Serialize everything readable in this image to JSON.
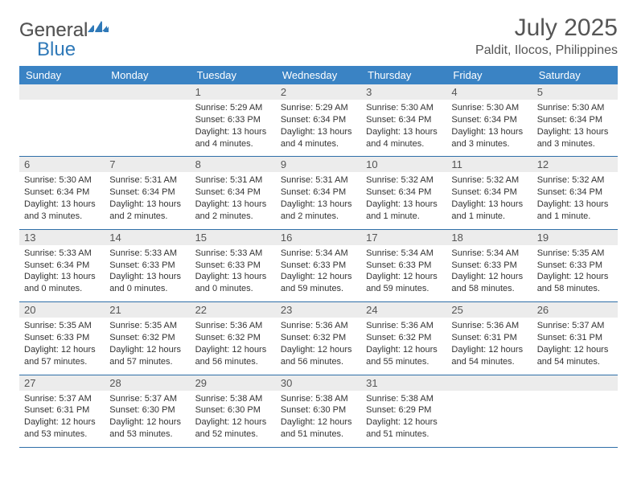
{
  "brand": {
    "name_part1": "General",
    "name_part2": "Blue"
  },
  "header": {
    "title": "July 2025",
    "location": "Paldit, Ilocos, Philippines"
  },
  "colors": {
    "header_bg": "#3a83c4",
    "header_text": "#ffffff",
    "daynum_bg": "#ececec",
    "border": "#2f6fa8",
    "text": "#333333",
    "title_text": "#555555",
    "logo_blue": "#2f79b8"
  },
  "calendar": {
    "day_names": [
      "Sunday",
      "Monday",
      "Tuesday",
      "Wednesday",
      "Thursday",
      "Friday",
      "Saturday"
    ],
    "weeks": [
      [
        null,
        null,
        {
          "n": "1",
          "sr": "5:29 AM",
          "ss": "6:33 PM",
          "dl": "13 hours and 4 minutes."
        },
        {
          "n": "2",
          "sr": "5:29 AM",
          "ss": "6:34 PM",
          "dl": "13 hours and 4 minutes."
        },
        {
          "n": "3",
          "sr": "5:30 AM",
          "ss": "6:34 PM",
          "dl": "13 hours and 4 minutes."
        },
        {
          "n": "4",
          "sr": "5:30 AM",
          "ss": "6:34 PM",
          "dl": "13 hours and 3 minutes."
        },
        {
          "n": "5",
          "sr": "5:30 AM",
          "ss": "6:34 PM",
          "dl": "13 hours and 3 minutes."
        }
      ],
      [
        {
          "n": "6",
          "sr": "5:30 AM",
          "ss": "6:34 PM",
          "dl": "13 hours and 3 minutes."
        },
        {
          "n": "7",
          "sr": "5:31 AM",
          "ss": "6:34 PM",
          "dl": "13 hours and 2 minutes."
        },
        {
          "n": "8",
          "sr": "5:31 AM",
          "ss": "6:34 PM",
          "dl": "13 hours and 2 minutes."
        },
        {
          "n": "9",
          "sr": "5:31 AM",
          "ss": "6:34 PM",
          "dl": "13 hours and 2 minutes."
        },
        {
          "n": "10",
          "sr": "5:32 AM",
          "ss": "6:34 PM",
          "dl": "13 hours and 1 minute."
        },
        {
          "n": "11",
          "sr": "5:32 AM",
          "ss": "6:34 PM",
          "dl": "13 hours and 1 minute."
        },
        {
          "n": "12",
          "sr": "5:32 AM",
          "ss": "6:34 PM",
          "dl": "13 hours and 1 minute."
        }
      ],
      [
        {
          "n": "13",
          "sr": "5:33 AM",
          "ss": "6:34 PM",
          "dl": "13 hours and 0 minutes."
        },
        {
          "n": "14",
          "sr": "5:33 AM",
          "ss": "6:33 PM",
          "dl": "13 hours and 0 minutes."
        },
        {
          "n": "15",
          "sr": "5:33 AM",
          "ss": "6:33 PM",
          "dl": "13 hours and 0 minutes."
        },
        {
          "n": "16",
          "sr": "5:34 AM",
          "ss": "6:33 PM",
          "dl": "12 hours and 59 minutes."
        },
        {
          "n": "17",
          "sr": "5:34 AM",
          "ss": "6:33 PM",
          "dl": "12 hours and 59 minutes."
        },
        {
          "n": "18",
          "sr": "5:34 AM",
          "ss": "6:33 PM",
          "dl": "12 hours and 58 minutes."
        },
        {
          "n": "19",
          "sr": "5:35 AM",
          "ss": "6:33 PM",
          "dl": "12 hours and 58 minutes."
        }
      ],
      [
        {
          "n": "20",
          "sr": "5:35 AM",
          "ss": "6:33 PM",
          "dl": "12 hours and 57 minutes."
        },
        {
          "n": "21",
          "sr": "5:35 AM",
          "ss": "6:32 PM",
          "dl": "12 hours and 57 minutes."
        },
        {
          "n": "22",
          "sr": "5:36 AM",
          "ss": "6:32 PM",
          "dl": "12 hours and 56 minutes."
        },
        {
          "n": "23",
          "sr": "5:36 AM",
          "ss": "6:32 PM",
          "dl": "12 hours and 56 minutes."
        },
        {
          "n": "24",
          "sr": "5:36 AM",
          "ss": "6:32 PM",
          "dl": "12 hours and 55 minutes."
        },
        {
          "n": "25",
          "sr": "5:36 AM",
          "ss": "6:31 PM",
          "dl": "12 hours and 54 minutes."
        },
        {
          "n": "26",
          "sr": "5:37 AM",
          "ss": "6:31 PM",
          "dl": "12 hours and 54 minutes."
        }
      ],
      [
        {
          "n": "27",
          "sr": "5:37 AM",
          "ss": "6:31 PM",
          "dl": "12 hours and 53 minutes."
        },
        {
          "n": "28",
          "sr": "5:37 AM",
          "ss": "6:30 PM",
          "dl": "12 hours and 53 minutes."
        },
        {
          "n": "29",
          "sr": "5:38 AM",
          "ss": "6:30 PM",
          "dl": "12 hours and 52 minutes."
        },
        {
          "n": "30",
          "sr": "5:38 AM",
          "ss": "6:30 PM",
          "dl": "12 hours and 51 minutes."
        },
        {
          "n": "31",
          "sr": "5:38 AM",
          "ss": "6:29 PM",
          "dl": "12 hours and 51 minutes."
        },
        null,
        null
      ]
    ]
  },
  "labels": {
    "sunrise": "Sunrise:",
    "sunset": "Sunset:",
    "daylight": "Daylight:"
  }
}
